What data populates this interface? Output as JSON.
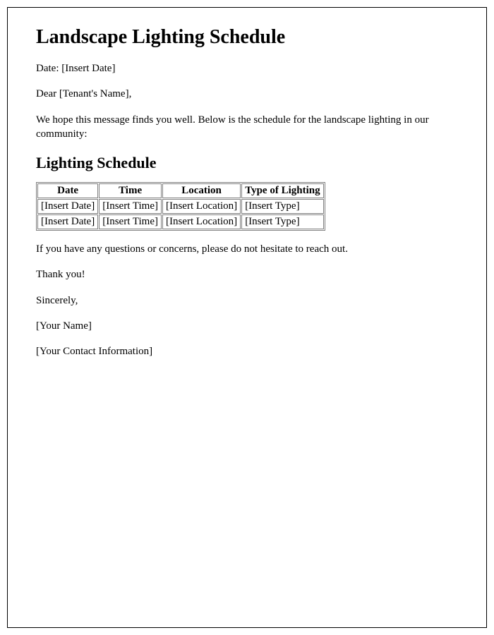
{
  "title": "Landscape Lighting Schedule",
  "date_line": "Date: [Insert Date]",
  "greeting": "Dear [Tenant's Name],",
  "intro": "We hope this message finds you well. Below is the schedule for the landscape lighting in our community:",
  "section_heading": "Lighting Schedule",
  "table": {
    "columns": [
      "Date",
      "Time",
      "Location",
      "Type of Lighting"
    ],
    "rows": [
      [
        "[Insert Date]",
        "[Insert Time]",
        "[Insert Location]",
        "[Insert Type]"
      ],
      [
        "[Insert Date]",
        "[Insert Time]",
        "[Insert Location]",
        "[Insert Type]"
      ]
    ]
  },
  "closing_note": "If you have any questions or concerns, please do not hesitate to reach out.",
  "thanks": "Thank you!",
  "signoff": "Sincerely,",
  "sender_name": "[Your Name]",
  "sender_contact": "[Your Contact Information]"
}
